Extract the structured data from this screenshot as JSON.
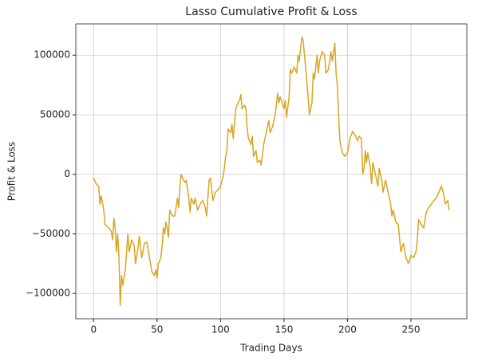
{
  "chart_data": {
    "type": "line",
    "title": "Lasso Cumulative Profit & Loss",
    "xlabel": "Trading Days",
    "ylabel": "Profit & Loss",
    "x": [
      0,
      2,
      4,
      5,
      6,
      8,
      9,
      12,
      14,
      15,
      16,
      17,
      18,
      19,
      20,
      21,
      22,
      23,
      25,
      27,
      28,
      30,
      32,
      33,
      35,
      36,
      38,
      40,
      42,
      44,
      46,
      48,
      49,
      50,
      51,
      53,
      54,
      55,
      56,
      57,
      58,
      59,
      60,
      62,
      64,
      66,
      67,
      68,
      69,
      70,
      72,
      73,
      75,
      76,
      77,
      79,
      80,
      82,
      84,
      86,
      88,
      89,
      91,
      92,
      94,
      96,
      98,
      100,
      102,
      103,
      104,
      105,
      106,
      108,
      109,
      110,
      112,
      113,
      115,
      116,
      117,
      119,
      120,
      121,
      122,
      124,
      125,
      126,
      128,
      129,
      131,
      132,
      134,
      136,
      138,
      139,
      141,
      143,
      144,
      145,
      146,
      147,
      148,
      150,
      151,
      152,
      154,
      155,
      156,
      158,
      160,
      161,
      162,
      164,
      165,
      167,
      168,
      169,
      170,
      172,
      173,
      174,
      176,
      177,
      178,
      180,
      182,
      183,
      185,
      187,
      188,
      190,
      191,
      192,
      193,
      194,
      196,
      198,
      200,
      202,
      204,
      206,
      208,
      209,
      211,
      212,
      213,
      214,
      215,
      216,
      218,
      219,
      220,
      222,
      224,
      225,
      227,
      228,
      230,
      232,
      234,
      235,
      236,
      238,
      240,
      242,
      244,
      246,
      248,
      250,
      252,
      254,
      255,
      256,
      258,
      260,
      262,
      264,
      266,
      268,
      270,
      272,
      274,
      276,
      277,
      279,
      280
    ],
    "values": [
      -3000,
      -8000,
      -10000,
      -25000,
      -18000,
      -30000,
      -42000,
      -45000,
      -48000,
      -55000,
      -37000,
      -45000,
      -65000,
      -50000,
      -70000,
      -110000,
      -85000,
      -93000,
      -80000,
      -50000,
      -65000,
      -55000,
      -60000,
      -75000,
      -62000,
      -52000,
      -70000,
      -58000,
      -57000,
      -70000,
      -82000,
      -85000,
      -80000,
      -87000,
      -75000,
      -70000,
      -60000,
      -45000,
      -50000,
      -40000,
      -45000,
      -53000,
      -30000,
      -35000,
      -35000,
      -20000,
      -28000,
      -10000,
      0,
      -3000,
      -7000,
      -5000,
      -20000,
      -32000,
      -20000,
      -25000,
      -20000,
      -30000,
      -25000,
      -22000,
      -28000,
      -35000,
      -5000,
      -3000,
      -22000,
      -15000,
      -13000,
      -10000,
      -2000,
      5000,
      15000,
      20000,
      38000,
      35000,
      42000,
      30000,
      55000,
      58000,
      62000,
      67000,
      55000,
      58000,
      55000,
      38000,
      30000,
      25000,
      32000,
      15000,
      20000,
      10000,
      12000,
      8000,
      25000,
      35000,
      45000,
      35000,
      40000,
      50000,
      58000,
      68000,
      60000,
      65000,
      62000,
      55000,
      62000,
      48000,
      65000,
      88000,
      85000,
      90000,
      85000,
      100000,
      95000,
      115000,
      113000,
      90000,
      78000,
      65000,
      50000,
      60000,
      85000,
      80000,
      100000,
      85000,
      95000,
      103000,
      100000,
      85000,
      88000,
      103000,
      95000,
      110000,
      85000,
      75000,
      50000,
      28000,
      18000,
      15000,
      18000,
      30000,
      36000,
      33000,
      28000,
      32000,
      30000,
      0,
      5000,
      20000,
      10000,
      18000,
      5000,
      -8000,
      10000,
      0,
      -10000,
      5000,
      -5000,
      -15000,
      -5000,
      -15000,
      -25000,
      -35000,
      -30000,
      -40000,
      -42000,
      -65000,
      -58000,
      -70000,
      -75000,
      -68000,
      -70000,
      -65000,
      -55000,
      -38000,
      -42000,
      -45000,
      -32000,
      -28000,
      -25000,
      -22000,
      -20000,
      -15000,
      -10000,
      -18000,
      -25000,
      -22000,
      -30000
    ],
    "color": "#daa520",
    "xlim": [
      -14,
      294
    ],
    "xticks": [
      0,
      50,
      100,
      150,
      200,
      250
    ],
    "ylim": [
      -121250,
      126250
    ],
    "yticks": [
      {
        "value": -100000,
        "label": "−100000"
      },
      {
        "value": -50000,
        "label": "−50000"
      },
      0,
      50000,
      100000
    ],
    "grid": true
  }
}
